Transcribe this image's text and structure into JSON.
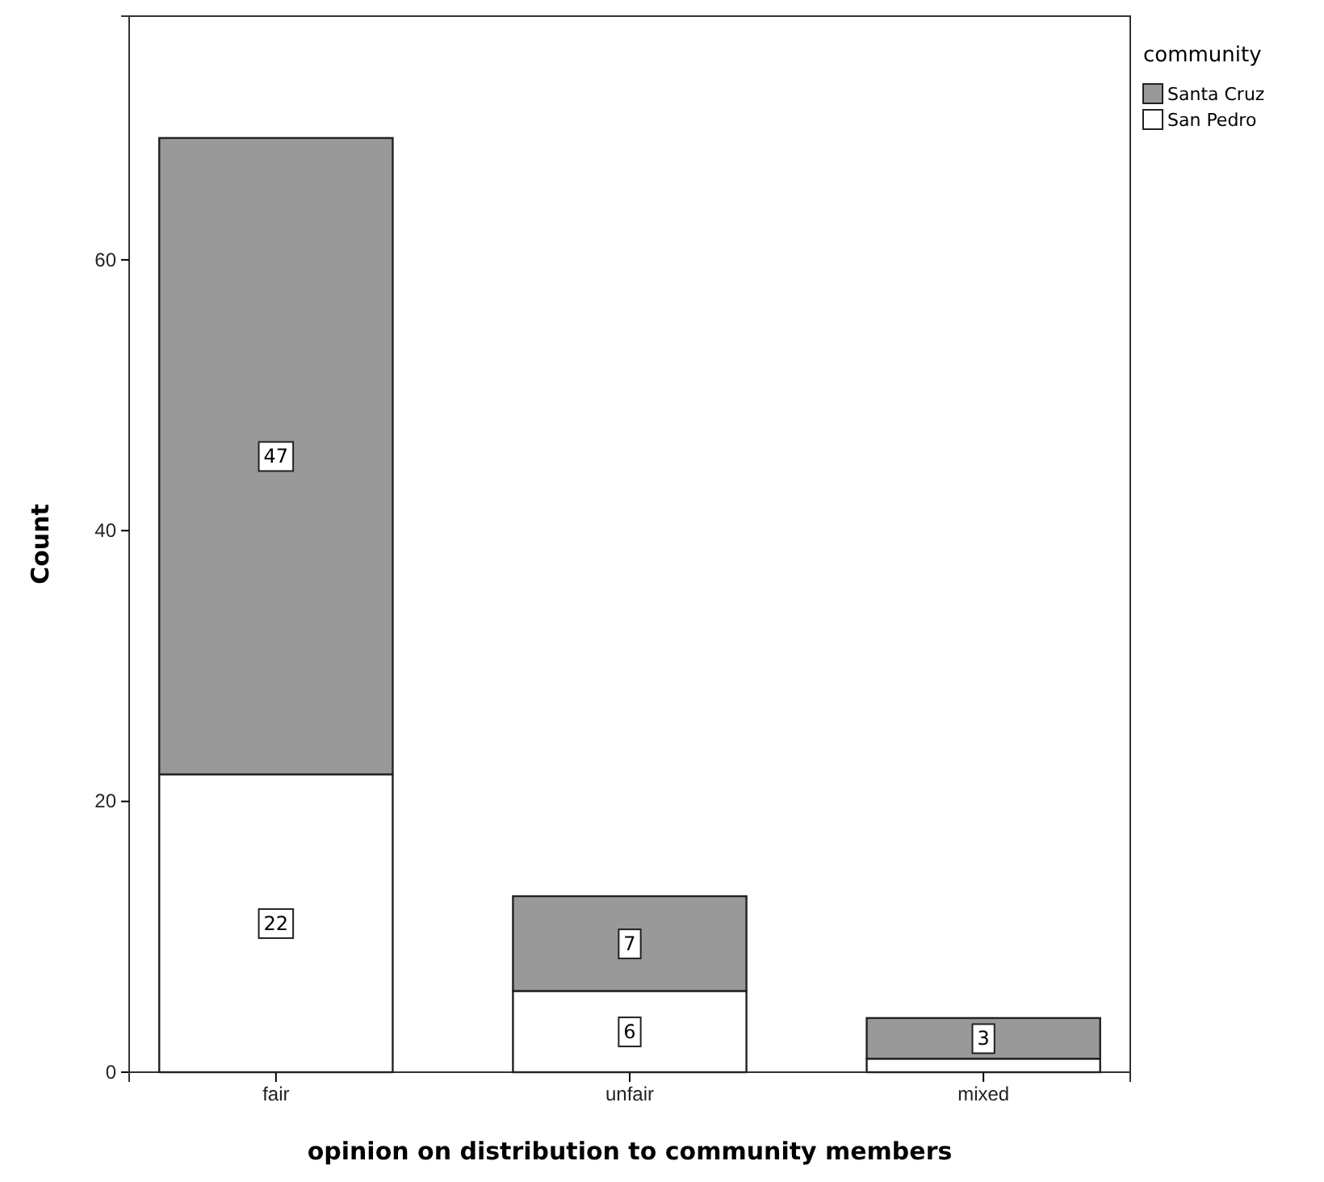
{
  "chart_data": {
    "type": "bar",
    "stacked": true,
    "xlabel": "opinion on distribution to community members",
    "ylabel": "Count",
    "legend_title": "community",
    "legend": "top right",
    "categories": [
      "fair",
      "unfair",
      "mixed"
    ],
    "series": [
      {
        "name": "San Pedro",
        "color": "#ffffff",
        "values": [
          22,
          6,
          1
        ],
        "value_labels": [
          "22",
          "6",
          null
        ]
      },
      {
        "name": "Santa Cruz",
        "color": "#999999",
        "values": [
          47,
          7,
          3
        ],
        "value_labels": [
          "47",
          "7",
          "3"
        ]
      }
    ],
    "ylim": [
      0,
      78
    ],
    "yticks": [
      0,
      20,
      40,
      60
    ],
    "grid": false
  }
}
